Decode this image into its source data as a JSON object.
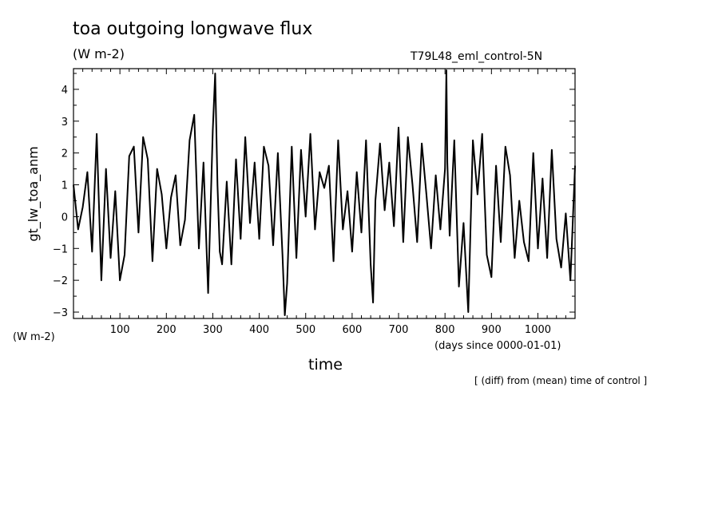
{
  "chart_data": {
    "type": "line",
    "title": "toa outgoing longwave flux",
    "title_units": "(W m-2)",
    "case_label": "T79L48_eml_control-5N",
    "ylabel": "gt_lw_toa_anm",
    "yunits": "(W m-2)",
    "xlabel": "time",
    "xunits": "(days since 0000-01-01)",
    "note": "[ (diff) from (mean) time of control ]",
    "xlim": [
      0,
      1080
    ],
    "ylim": [
      -3.2,
      4.65
    ],
    "xticks": [
      100,
      200,
      300,
      400,
      500,
      600,
      700,
      800,
      900,
      1000
    ],
    "yticks": [
      -3,
      -2,
      -1,
      0,
      1,
      2,
      3,
      4
    ],
    "grid": false,
    "line_color": "#000000",
    "series": [
      {
        "x": [
          0,
          10,
          20,
          30,
          40,
          50,
          60,
          70,
          80,
          90,
          100,
          110,
          120,
          130,
          140,
          150,
          160,
          170,
          180,
          190,
          200,
          210,
          220,
          230,
          240,
          250,
          260,
          270,
          280,
          290,
          300,
          305,
          310,
          315,
          320,
          330,
          340,
          350,
          360,
          370,
          380,
          390,
          400,
          410,
          420,
          430,
          440,
          450,
          455,
          460,
          470,
          480,
          490,
          500,
          510,
          520,
          530,
          540,
          550,
          560,
          570,
          580,
          590,
          600,
          610,
          620,
          630,
          640,
          645,
          650,
          660,
          670,
          680,
          690,
          700,
          710,
          720,
          730,
          740,
          750,
          760,
          770,
          780,
          790,
          800,
          803,
          805,
          810,
          820,
          830,
          840,
          850,
          860,
          870,
          880,
          890,
          900,
          910,
          920,
          930,
          940,
          950,
          960,
          970,
          980,
          990,
          1000,
          1010,
          1020,
          1030,
          1040,
          1050,
          1060,
          1070,
          1080
        ],
        "values": [
          1.0,
          -0.4,
          0.3,
          1.4,
          -1.1,
          2.6,
          -2.0,
          1.5,
          -1.3,
          0.8,
          -2.0,
          -1.2,
          1.9,
          2.2,
          -0.5,
          2.5,
          1.8,
          -1.4,
          1.5,
          0.7,
          -1.0,
          0.6,
          1.3,
          -0.9,
          -0.1,
          2.4,
          3.2,
          -1.0,
          1.7,
          -2.4,
          2.7,
          4.5,
          1.0,
          -1.1,
          -1.5,
          1.1,
          -1.5,
          1.8,
          -0.7,
          2.5,
          -0.2,
          1.7,
          -0.7,
          2.2,
          1.6,
          -0.9,
          2.0,
          -1.2,
          -3.1,
          -2.1,
          2.2,
          -1.3,
          2.1,
          0.0,
          2.6,
          -0.4,
          1.4,
          0.9,
          1.6,
          -1.4,
          2.4,
          -0.4,
          0.8,
          -1.1,
          1.4,
          -0.5,
          2.4,
          -1.5,
          -2.7,
          0.5,
          2.3,
          0.2,
          1.7,
          -0.3,
          2.8,
          -0.8,
          2.5,
          1.0,
          -0.8,
          2.3,
          0.7,
          -1.0,
          1.3,
          -0.4,
          1.5,
          4.6,
          1.7,
          -0.6,
          2.4,
          -2.2,
          -0.2,
          -3.0,
          2.4,
          0.7,
          2.6,
          -1.2,
          -1.9,
          1.6,
          -0.8,
          2.2,
          1.3,
          -1.3,
          0.5,
          -0.8,
          -1.4,
          2.0,
          -1.0,
          1.2,
          -1.3,
          2.1,
          -0.7,
          -1.6,
          0.1,
          -2.0,
          1.6
        ]
      }
    ]
  }
}
